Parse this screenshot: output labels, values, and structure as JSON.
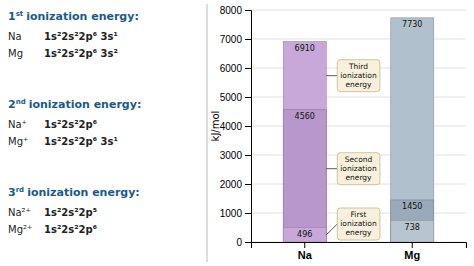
{
  "chart_data": {
    "type": "bar",
    "categories": [
      "Na",
      "Mg"
    ],
    "series": [
      {
        "colors": [
          "#c8a8d8",
          "#b8c4d0"
        ],
        "values": [
          496,
          738
        ]
      },
      {
        "colors": [
          "#b898cc",
          "#9aaabb"
        ],
        "values": [
          4560,
          1450
        ]
      },
      {
        "colors": [
          "#c8a8d8",
          "#b0c0cc"
        ],
        "values": [
          6910,
          7730
        ]
      }
    ],
    "ylabel": "kJ/mol",
    "ylim": [
      0,
      8000
    ],
    "yticks": [
      0,
      1000,
      2000,
      3000,
      4000,
      5000,
      6000,
      7000,
      8000
    ],
    "grid": true,
    "data_labels": true,
    "annotations": [
      "First\nionization\nenergy",
      "Second\nionization\nenergy",
      "Third\nionization\nenergy"
    ],
    "notes": [
      {
        "number": "1",
        "suffix": "st",
        "text": "ionization energy:",
        "rows": [
          {
            "species": "Na",
            "configuration": "1s²2s²2p⁶ 3s¹"
          },
          {
            "species": "Mg",
            "configuration": "1s²2s²2p⁶ 3s²"
          }
        ]
      },
      {
        "number": "2",
        "suffix": "nd",
        "text": "ionization energy:",
        "rows": [
          {
            "species": "Na⁺",
            "configuration": "1s²2s²2p⁶"
          },
          {
            "species": "Mg⁺",
            "configuration": "1s²2s²2p⁶ 3s¹"
          }
        ]
      },
      {
        "number": "3",
        "suffix": "rd",
        "text": "ionization energy:",
        "rows": [
          {
            "species": "Na²⁺",
            "configuration": "1s²2s²2p⁵"
          },
          {
            "species": "Mg²⁺",
            "configuration": "1s²2s²2p⁶"
          }
        ]
      }
    ]
  }
}
